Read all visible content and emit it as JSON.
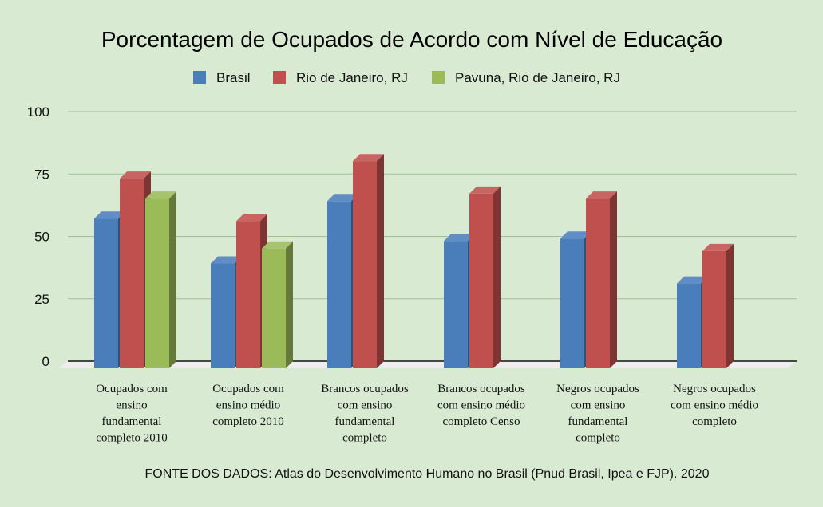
{
  "chart_data": {
    "type": "bar",
    "title": "Porcentagem de Ocupados de Acordo com Nível de Educação",
    "legend_position": "top",
    "grid": true,
    "ylim": [
      0,
      100
    ],
    "yticks": [
      "0",
      "25",
      "50",
      "75",
      "100"
    ],
    "ytick_values": [
      0,
      25,
      50,
      75,
      100
    ],
    "categories": [
      [
        "Ocupados com",
        "ensino",
        "fundamental",
        "completo 2010"
      ],
      [
        "Ocupados com",
        "ensino médio",
        "completo 2010"
      ],
      [
        "Brancos ocupados",
        "com ensino",
        "fundamental",
        "completo"
      ],
      [
        "Brancos ocupados",
        "com ensino médio",
        "completo Censo"
      ],
      [
        "Negros ocupados",
        "com ensino",
        "fundamental",
        "completo"
      ],
      [
        "Negros ocupados",
        "com ensino médio",
        "completo"
      ]
    ],
    "series": [
      {
        "name": "Brasil",
        "color": "#4a7ebb",
        "values": [
          60,
          42,
          67,
          51,
          52,
          34
        ]
      },
      {
        "name": "Rio de Janeiro, RJ",
        "color": "#c0504d",
        "values": [
          76,
          59,
          83,
          70,
          68,
          47
        ]
      },
      {
        "name": "Pavuna, Rio de Janeiro, RJ",
        "color": "#9bbb59",
        "values": [
          68,
          48,
          null,
          null,
          null,
          null
        ]
      }
    ],
    "source": "FONTE DOS DADOS: Atlas do Desenvolvimento Humano no Brasil (Pnud Brasil, Ipea e FJP). 2020"
  }
}
